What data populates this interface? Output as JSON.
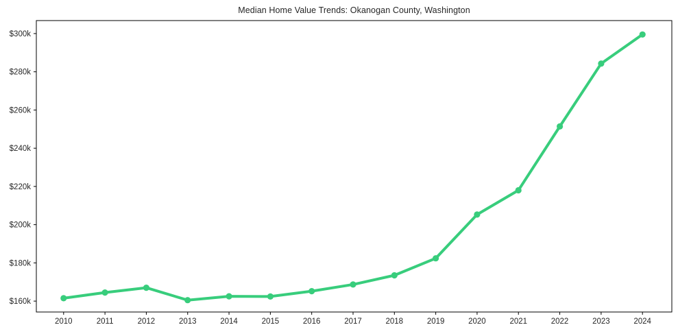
{
  "page": {
    "background": "#ffffff"
  },
  "chart_data": {
    "type": "line",
    "title": "Median Home Value Trends: Okanogan County, Washington",
    "series_name": "Median Home Value",
    "x": [
      2010,
      2011,
      2012,
      2013,
      2014,
      2015,
      2016,
      2017,
      2018,
      2019,
      2020,
      2021,
      2022,
      2023,
      2024
    ],
    "xtick_labels": [
      "2010",
      "2011",
      "2012",
      "2013",
      "2014",
      "2015",
      "2016",
      "2017",
      "2018",
      "2019",
      "2020",
      "2021",
      "2022",
      "2023",
      "2024"
    ],
    "values": [
      161500,
      164500,
      167000,
      160500,
      162500,
      162400,
      165200,
      168700,
      173500,
      182400,
      205300,
      218000,
      251400,
      284300,
      299500
    ],
    "yticks": [
      {
        "value": 160000,
        "label": "$160k"
      },
      {
        "value": 180000,
        "label": "$180k"
      },
      {
        "value": 200000,
        "label": "$200k"
      },
      {
        "value": 220000,
        "label": "$220k"
      },
      {
        "value": 240000,
        "label": "$240k"
      },
      {
        "value": 260000,
        "label": "$260k"
      },
      {
        "value": 280000,
        "label": "$280k"
      },
      {
        "value": 300000,
        "label": "$300k"
      }
    ],
    "xlabel": "",
    "ylabel": "",
    "xlim": [
      2009.34,
      2024.71
    ],
    "ylim": [
      154300,
      306800
    ],
    "grid": false,
    "legend": "none",
    "line_color": "#38cd7c",
    "marker_color": "#38cd7c",
    "axis_color": "#000000",
    "text_color": "#262626"
  }
}
